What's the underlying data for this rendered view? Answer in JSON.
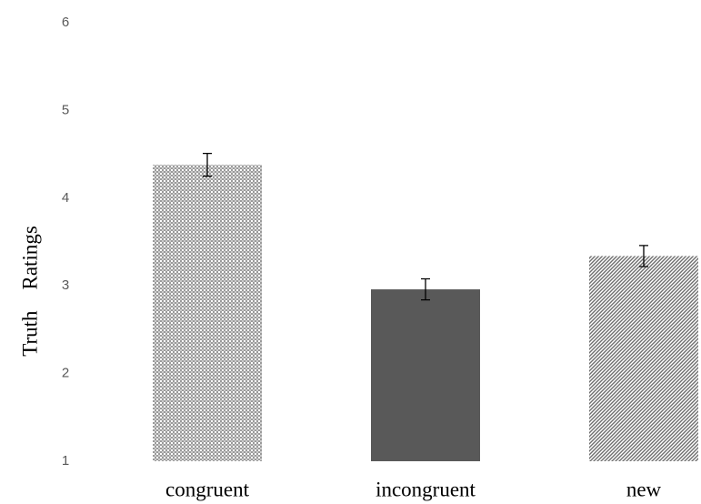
{
  "chart_data": {
    "type": "bar",
    "y_label": "Truth    Ratings",
    "categories": [
      "congruent",
      "incongruent",
      "new"
    ],
    "values": [
      4.38,
      2.96,
      3.34
    ],
    "errors": [
      0.13,
      0.12,
      0.12
    ],
    "colors": [
      "#9a9a9a",
      "#595959",
      "#6e6e6e"
    ],
    "patterns": [
      "checker",
      "solid",
      "diagonal"
    ],
    "ylim": [
      1,
      6
    ],
    "yticks": [
      1,
      2,
      3,
      4,
      5,
      6
    ],
    "grid": false
  }
}
